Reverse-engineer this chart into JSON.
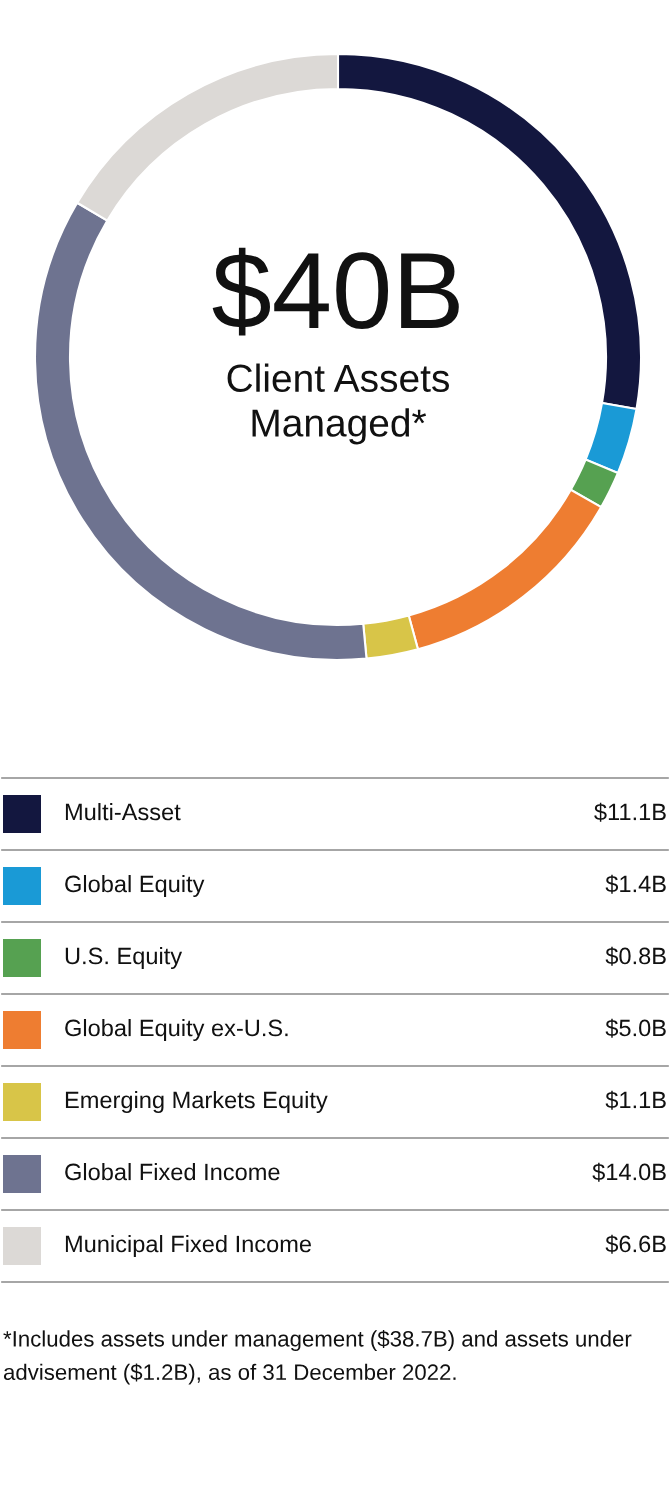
{
  "chart_data": {
    "type": "donut",
    "title": "$40B",
    "subtitle": "Client Assets Managed*",
    "categories": [
      "Multi-Asset",
      "Global Equity",
      "U.S. Equity",
      "Global Equity ex-U.S.",
      "Emerging Markets Equity",
      "Global Fixed Income",
      "Municipal Fixed Income"
    ],
    "values": [
      11.1,
      1.4,
      0.8,
      5.0,
      1.1,
      14.0,
      6.6
    ],
    "colors": [
      "#13173f",
      "#1a9ad6",
      "#56a151",
      "#ee7d31",
      "#d8c548",
      "#6e7390",
      "#dcd9d6"
    ],
    "value_labels": [
      "$11.1B",
      "$1.4B",
      "$0.8B",
      "$5.0B",
      "$1.1B",
      "$14.0B",
      "$6.6B"
    ],
    "legend": "bottom",
    "annotations": [
      "*Includes assets under management ($38.7B) and assets under advisement ($1.2B), as of 31 December 2022."
    ]
  }
}
